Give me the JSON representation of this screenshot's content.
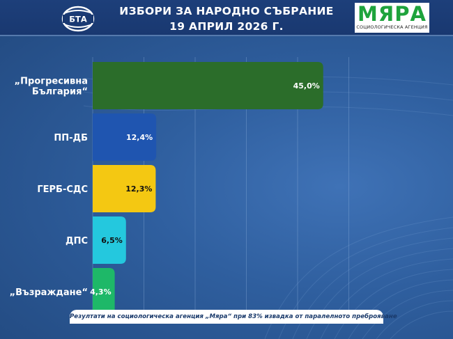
{
  "header": {
    "logo_text": "БТА",
    "title_line1": "ИЗБОРИ ЗА НАРОДНО СЪБРАНИЕ",
    "title_line2": "19 АПРИЛ 2026 Г.",
    "partner_name": "МЯРА",
    "partner_subtitle": "СОЦИОЛОГИЧЕСКА АГЕНЦИЯ"
  },
  "footer": {
    "text": "Резултати на социологическа агенция „Мяра“ при 83% извадка от паралелното преброяване"
  },
  "chart_data": {
    "type": "bar",
    "orientation": "horizontal",
    "categories": [
      "„Прогресивна България“",
      "ПП-ДБ",
      "ГЕРБ-СДС",
      "ДПС",
      "„Възраждане“"
    ],
    "values": [
      45.0,
      12.4,
      12.3,
      6.5,
      4.3
    ],
    "value_labels": [
      "45,0%",
      "12,4%",
      "12,3%",
      "6,5%",
      "4,3%"
    ],
    "colors": [
      "#2b6d2a",
      "#1f55b0",
      "#f4c812",
      "#24c8de",
      "#1eb868"
    ],
    "label_colors": [
      "#ffffff",
      "#ffffff",
      "#111111",
      "#111111",
      "#ffffff"
    ],
    "xlim": [
      0,
      50
    ],
    "grid": true,
    "legend": "none",
    "title": "",
    "xlabel": "",
    "ylabel": ""
  }
}
